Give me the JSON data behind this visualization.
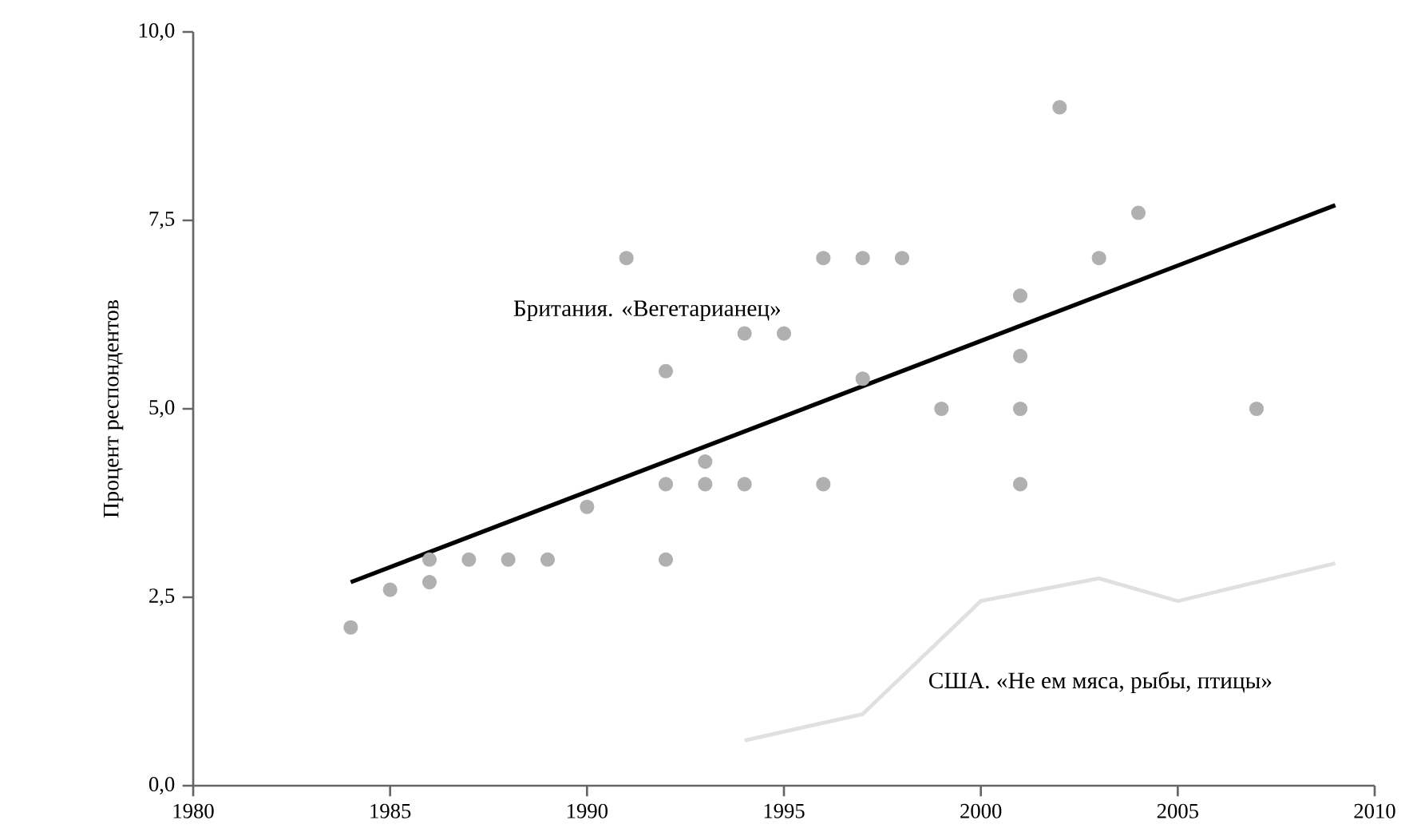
{
  "chart_data": {
    "type": "scatter",
    "ylabel": "Процент респондентов",
    "xlim": [
      1980,
      2010
    ],
    "xticks": [
      1980,
      1985,
      1990,
      1995,
      2000,
      2005,
      2010
    ],
    "ylim": [
      0,
      10
    ],
    "yticks": [
      {
        "value": 0,
        "label": "0,0"
      },
      {
        "value": 2.5,
        "label": "2,5"
      },
      {
        "value": 5,
        "label": "5,0"
      },
      {
        "value": 7.5,
        "label": "7,5"
      },
      {
        "value": 10,
        "label": "10,0"
      }
    ],
    "grid": false,
    "legend": false,
    "series": [
      {
        "name": "Британия. «Вегетарианец»",
        "marker": "circle",
        "color": "#b0b0b0",
        "x": [
          1984,
          1985,
          1986,
          1986,
          1987,
          1988,
          1989,
          1990,
          1991,
          1992,
          1992,
          1992,
          1993,
          1993,
          1994,
          1994,
          1995,
          1996,
          1996,
          1997,
          1997,
          1998,
          1999,
          2001,
          2001,
          2001,
          2001,
          2002,
          2003,
          2004,
          2007
        ],
        "values": [
          2.1,
          2.6,
          3.0,
          2.7,
          3.0,
          3.0,
          3.0,
          3.7,
          7.0,
          5.5,
          4.0,
          3.0,
          4.3,
          4.0,
          6.0,
          4.0,
          6.0,
          7.0,
          4.0,
          7.0,
          5.4,
          7.0,
          5.0,
          6.5,
          5.7,
          5.0,
          4.0,
          9.0,
          7.0,
          7.6,
          5.0
        ]
      },
      {
        "type": "line",
        "color": "#000000",
        "x": [
          1984,
          2009
        ],
        "values": [
          2.7,
          7.7
        ]
      },
      {
        "name": "США. «Не ем мяса, рыбы, птицы»",
        "type": "line",
        "color": "#e0e0e0",
        "x": [
          1994,
          1997,
          2000,
          2003,
          2005,
          2009
        ],
        "values": [
          0.6,
          0.95,
          2.45,
          2.75,
          2.45,
          2.95
        ]
      }
    ]
  }
}
